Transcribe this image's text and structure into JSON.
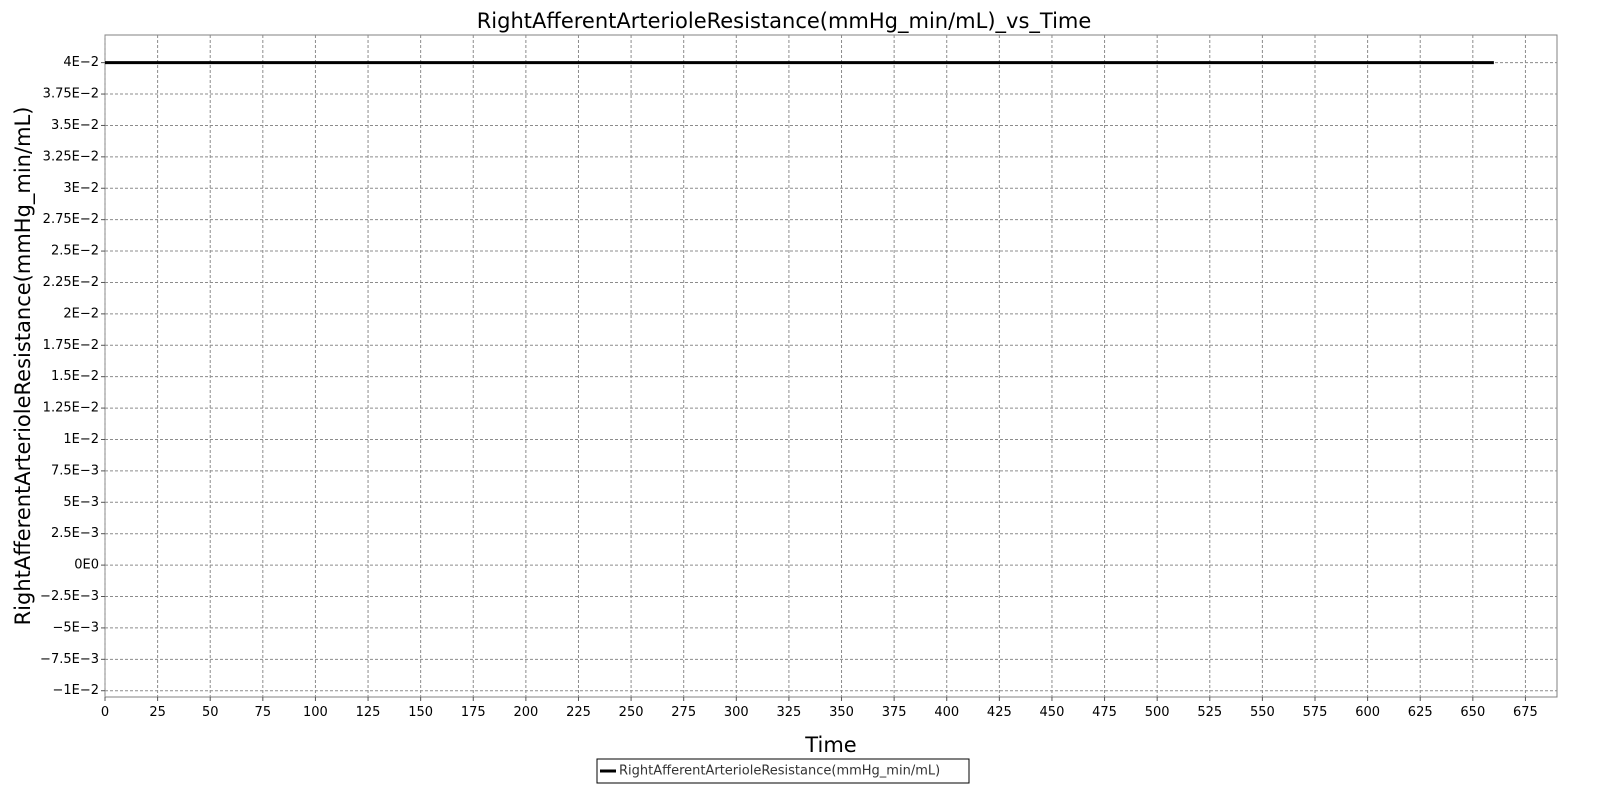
{
  "chart_data": {
    "type": "line",
    "title": "RightAfferentArterioleResistance(mmHg_min/mL)_vs_Time",
    "xlabel": "Time",
    "ylabel": "RightAfferentArterioleResistance(mmHg_min/mL)",
    "xlim": [
      0,
      690
    ],
    "ylim": [
      -0.0105,
      0.0422
    ],
    "x_ticks": [
      0,
      25,
      50,
      75,
      100,
      125,
      150,
      175,
      200,
      225,
      250,
      275,
      300,
      325,
      350,
      375,
      400,
      425,
      450,
      475,
      500,
      525,
      550,
      575,
      600,
      625,
      650,
      675
    ],
    "x_tick_labels": [
      "0",
      "25",
      "50",
      "75",
      "100",
      "125",
      "150",
      "175",
      "200",
      "225",
      "250",
      "275",
      "300",
      "325",
      "350",
      "375",
      "400",
      "425",
      "450",
      "475",
      "500",
      "525",
      "550",
      "575",
      "600",
      "625",
      "650",
      "675"
    ],
    "y_ticks": [
      0.04,
      0.0375,
      0.035,
      0.0325,
      0.03,
      0.0275,
      0.025,
      0.0225,
      0.02,
      0.0175,
      0.015,
      0.0125,
      0.01,
      0.0075,
      0.005,
      0.0025,
      0,
      -0.0025,
      -0.005,
      -0.0075,
      -0.01
    ],
    "y_tick_labels": [
      "4E−2",
      "3.75E−2",
      "3.5E−2",
      "3.25E−2",
      "3E−2",
      "2.75E−2",
      "2.5E−2",
      "2.25E−2",
      "2E−2",
      "1.75E−2",
      "1.5E−2",
      "1.25E−2",
      "1E−2",
      "7.5E−3",
      "5E−3",
      "2.5E−3",
      "0E0",
      "−2.5E−3",
      "−5E−3",
      "−7.5E−3",
      "−1E−2"
    ],
    "grid": true,
    "legend_position": "bottom-center",
    "series": [
      {
        "name": "RightAfferentArterioleResistance(mmHg_min/mL)",
        "color": "#000000",
        "x": [
          0,
          660
        ],
        "y": [
          0.04,
          0.04
        ]
      }
    ]
  }
}
